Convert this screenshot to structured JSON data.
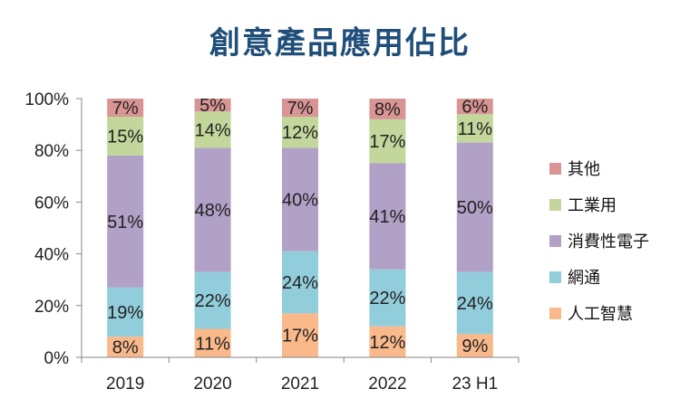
{
  "chart_data": {
    "type": "bar",
    "stacked": true,
    "title": "創意產品應用佔比",
    "categories": [
      "2019",
      "2020",
      "2021",
      "2022",
      "23 H1"
    ],
    "ylim": [
      0,
      100
    ],
    "yticks": [
      "0%",
      "20%",
      "40%",
      "60%",
      "80%",
      "100%"
    ],
    "legend_position": "right",
    "series": [
      {
        "name": "人工智慧",
        "color": "#F9B98A",
        "values": [
          8,
          11,
          17,
          12,
          9
        ]
      },
      {
        "name": "網通",
        "color": "#92CDDC",
        "values": [
          19,
          22,
          24,
          22,
          24
        ]
      },
      {
        "name": "消費性電子",
        "color": "#B2A1C7",
        "values": [
          51,
          48,
          40,
          41,
          50
        ]
      },
      {
        "name": "工業用",
        "color": "#C3D69B",
        "values": [
          15,
          14,
          12,
          17,
          11
        ]
      },
      {
        "name": "其他",
        "color": "#D99594",
        "values": [
          7,
          5,
          7,
          8,
          6
        ]
      }
    ]
  }
}
